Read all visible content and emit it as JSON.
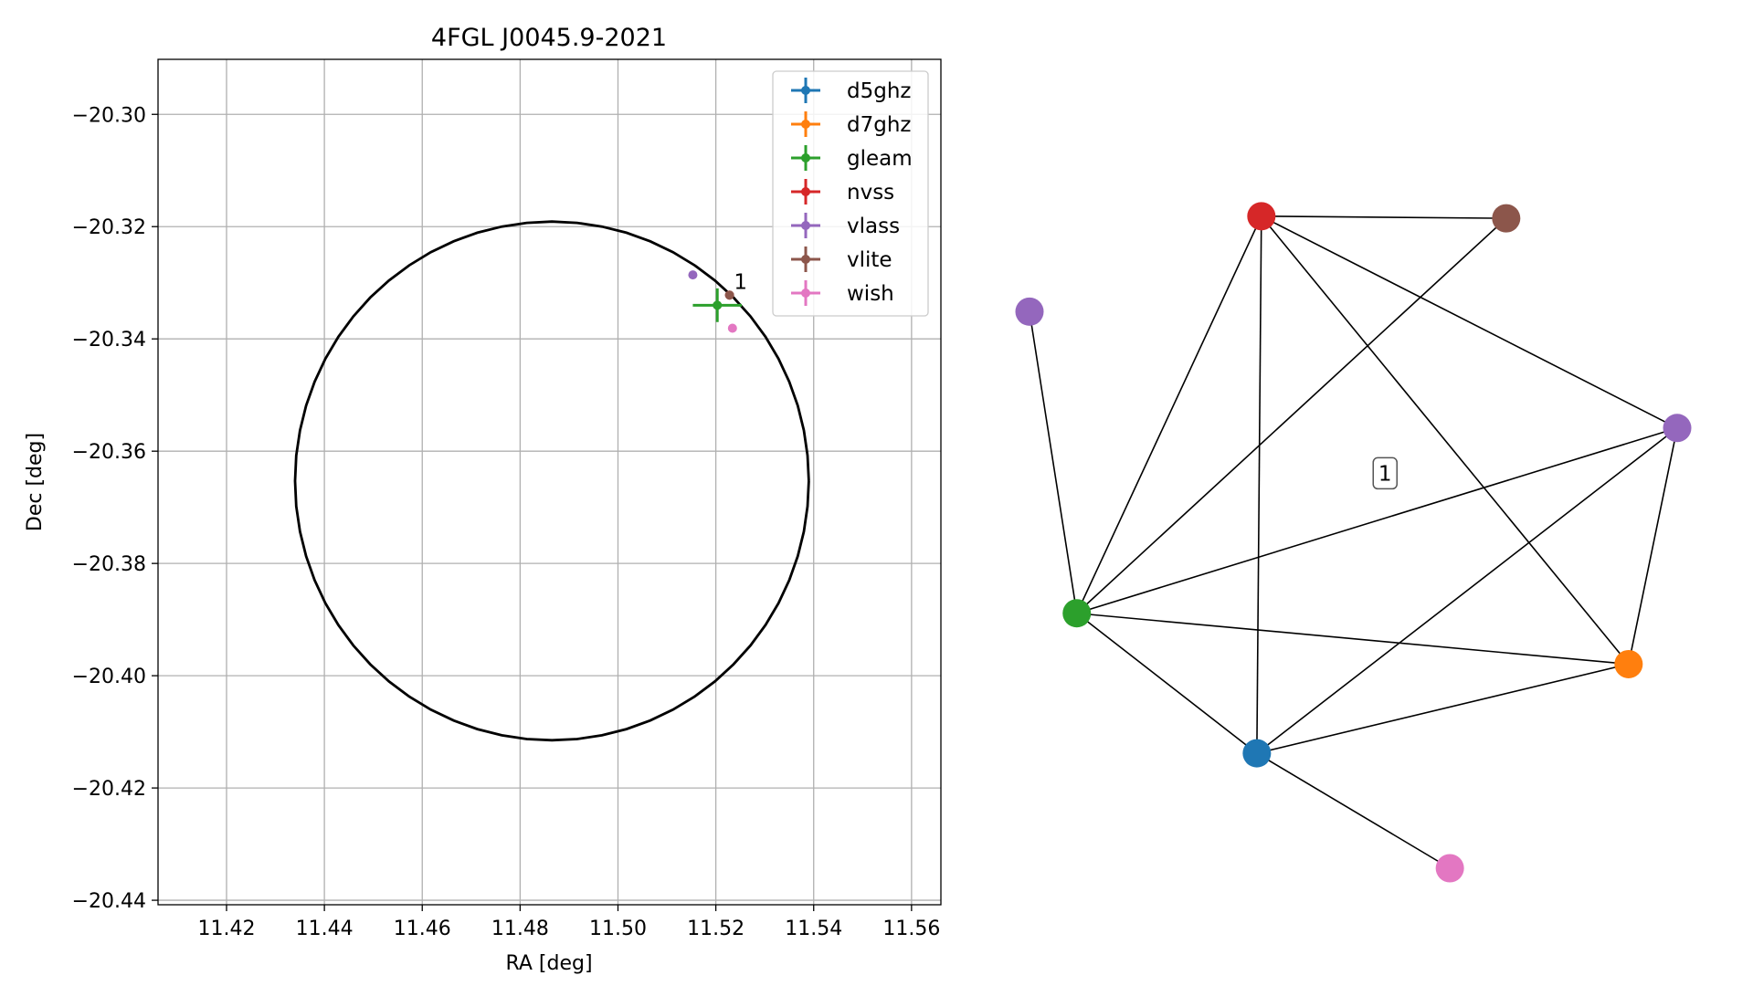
{
  "chart_data": [
    {
      "type": "scatter",
      "title": "4FGL J0045.9-2021",
      "xlabel": "RA [deg]",
      "ylabel": "Dec [deg]",
      "xlim": [
        11.406,
        11.566
      ],
      "ylim": [
        -20.4408,
        -20.2902
      ],
      "xticks": [
        11.42,
        11.44,
        11.46,
        11.48,
        11.5,
        11.52,
        11.54,
        11.56
      ],
      "xtick_labels": [
        "11.42",
        "11.44",
        "11.46",
        "11.48",
        "11.50",
        "11.52",
        "11.54",
        "11.56"
      ],
      "yticks": [
        -20.3,
        -20.32,
        -20.34,
        -20.36,
        -20.38,
        -20.4,
        -20.42,
        -20.44
      ],
      "ytick_labels": [
        "−20.30",
        "−20.32",
        "−20.34",
        "−20.36",
        "−20.38",
        "−20.40",
        "−20.42",
        "−20.44"
      ],
      "grid": true,
      "legend_position": "top-right",
      "ellipse": {
        "ra": 11.4865,
        "dec": -20.3653,
        "semi_ra": 0.0525,
        "semi_dec": 0.0462,
        "color": "#000000"
      },
      "series": [
        {
          "name": "d5ghz",
          "color": "#1f77b4",
          "points": []
        },
        {
          "name": "d7ghz",
          "color": "#ff7f0e",
          "points": []
        },
        {
          "name": "gleam",
          "color": "#2ca02c",
          "points": [
            {
              "x": 11.5203,
              "y": -20.334,
              "xerr": 0.005,
              "yerr": 0.003
            }
          ]
        },
        {
          "name": "nvss",
          "color": "#d62728",
          "points": [
            {
              "x": 11.5228,
              "y": -20.3322,
              "xerr": 0.0003,
              "yerr": 0.0003
            }
          ]
        },
        {
          "name": "vlass",
          "color": "#9467bd",
          "points": [
            {
              "x": 11.5153,
              "y": -20.3286,
              "xerr": 0,
              "yerr": 0
            }
          ]
        },
        {
          "name": "vlite",
          "color": "#8c564b",
          "points": [
            {
              "x": 11.5228,
              "y": -20.3322,
              "xerr": 0.0003,
              "yerr": 0.0003
            }
          ]
        },
        {
          "name": "wish",
          "color": "#e377c2",
          "points": [
            {
              "x": 11.5234,
              "y": -20.3381,
              "xerr": 0,
              "yerr": 0
            }
          ]
        }
      ],
      "annotations": [
        {
          "text": "1",
          "x": 11.5237,
          "y": -20.3298
        }
      ]
    },
    {
      "type": "network",
      "nodes": [
        {
          "id": "n1",
          "color": "#d62728",
          "x": 0.358,
          "y": 0.936
        },
        {
          "id": "n2",
          "color": "#8c564b",
          "x": 0.736,
          "y": 0.933
        },
        {
          "id": "n3",
          "color": "#9467bd",
          "x": 0.0,
          "y": 0.799
        },
        {
          "id": "n4",
          "color": "#9467bd",
          "x": 1.0,
          "y": 0.632
        },
        {
          "id": "n5",
          "color": "#2ca02c",
          "x": 0.073,
          "y": 0.366
        },
        {
          "id": "n6",
          "color": "#ff7f0e",
          "x": 0.925,
          "y": 0.293
        },
        {
          "id": "n7",
          "color": "#1f77b4",
          "x": 0.351,
          "y": 0.165
        },
        {
          "id": "n8",
          "color": "#e377c2",
          "x": 0.649,
          "y": 0.0
        }
      ],
      "edges": [
        [
          "n1",
          "n2"
        ],
        [
          "n1",
          "n4"
        ],
        [
          "n1",
          "n6"
        ],
        [
          "n1",
          "n5"
        ],
        [
          "n1",
          "n7"
        ],
        [
          "n2",
          "n5"
        ],
        [
          "n3",
          "n5"
        ],
        [
          "n4",
          "n5"
        ],
        [
          "n4",
          "n7"
        ],
        [
          "n4",
          "n6"
        ],
        [
          "n5",
          "n6"
        ],
        [
          "n5",
          "n7"
        ],
        [
          "n6",
          "n7"
        ],
        [
          "n7",
          "n8"
        ]
      ],
      "label": {
        "text": "1",
        "x": 0.549,
        "y": 0.567
      }
    }
  ]
}
